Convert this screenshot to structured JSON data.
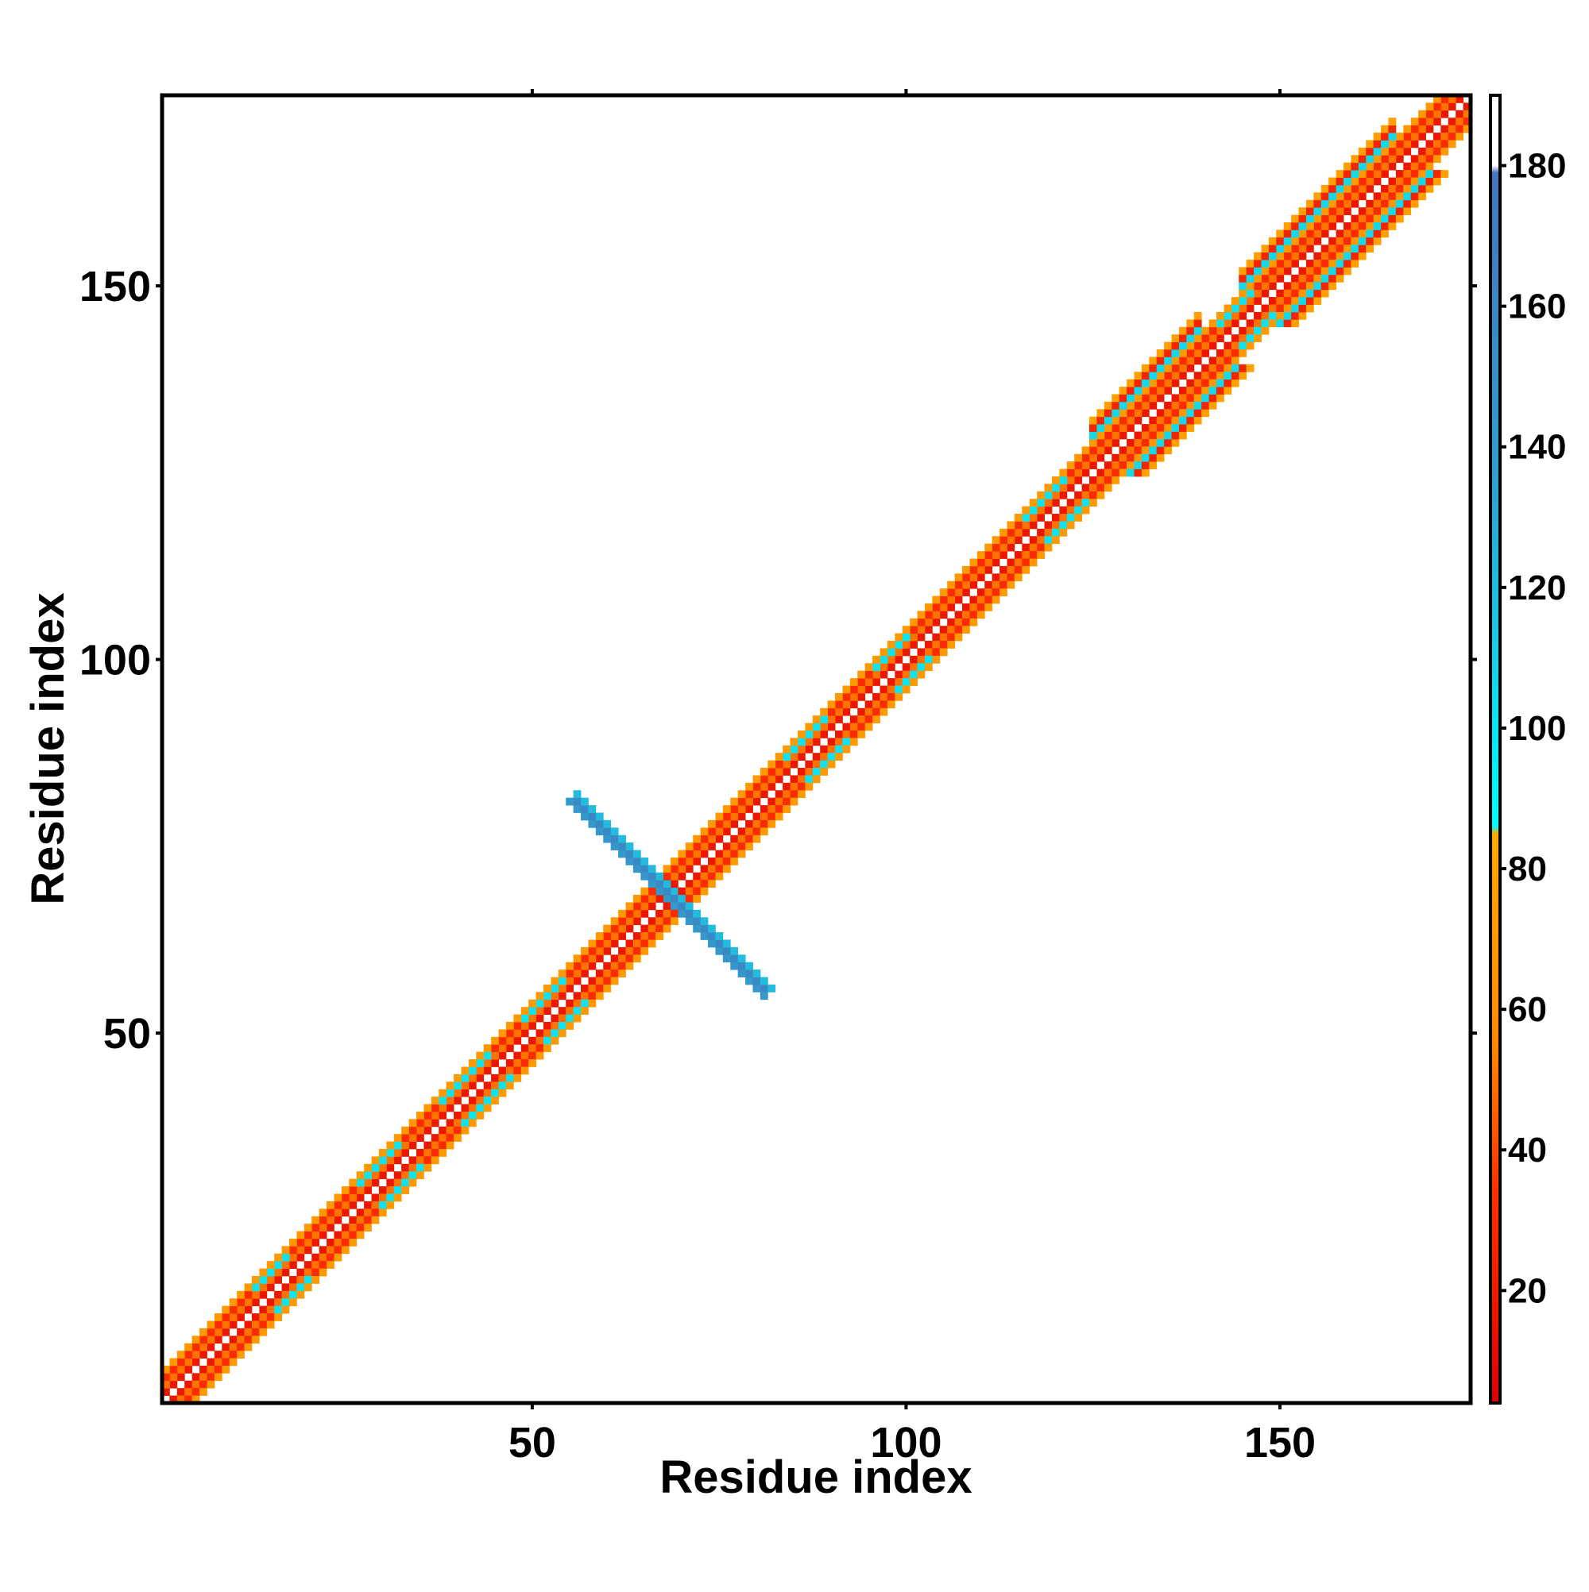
{
  "chart_data": {
    "type": "heatmap",
    "title": "",
    "xlabel": "Residue index",
    "ylabel": "Residue index",
    "xlim": [
      1,
      175
    ],
    "ylim": [
      1,
      175
    ],
    "xticks": [
      50,
      100,
      150
    ],
    "yticks": [
      50,
      100,
      150
    ],
    "grid": false,
    "symmetric": true,
    "diagonal_value": 190,
    "colorbar": {
      "min": 4,
      "max": 190,
      "ticks": [
        20,
        40,
        60,
        80,
        100,
        120,
        140,
        160,
        180
      ],
      "stops": [
        {
          "value": 4,
          "color": "#dd0000"
        },
        {
          "value": 35,
          "color": "#ff3300"
        },
        {
          "value": 55,
          "color": "#ff8800"
        },
        {
          "value": 85,
          "color": "#ffaa00"
        },
        {
          "value": 86,
          "color": "#00ffff"
        },
        {
          "value": 120,
          "color": "#22bbdd"
        },
        {
          "value": 140,
          "color": "#3399cc"
        },
        {
          "value": 179,
          "color": "#4477bb"
        },
        {
          "value": 180,
          "color": "#ffffff"
        },
        {
          "value": 190,
          "color": "#ffffff"
        }
      ]
    },
    "bands": [
      {
        "offset": 1,
        "value": 18,
        "name": "d1"
      },
      {
        "offset": 2,
        "value": 50,
        "name": "d2"
      },
      {
        "offset": 3,
        "value": 30,
        "name": "d3"
      },
      {
        "offset": 4,
        "value": 70,
        "name": "d4"
      }
    ],
    "band_segments": [
      {
        "from": 13,
        "to": 17,
        "offset": 3,
        "value": 100
      },
      {
        "from": 27,
        "to": 32,
        "offset": 3,
        "value": 100
      },
      {
        "from": 38,
        "to": 44,
        "offset": 3,
        "value": 100
      },
      {
        "from": 49,
        "to": 54,
        "offset": 3,
        "value": 100
      },
      {
        "from": 84,
        "to": 89,
        "offset": 3,
        "value": 100
      },
      {
        "from": 96,
        "to": 100,
        "offset": 3,
        "value": 100
      },
      {
        "from": 116,
        "to": 121,
        "offset": 3,
        "value": 100
      },
      {
        "from": 142,
        "to": 146,
        "offset": 3,
        "value": 100
      }
    ],
    "strand_pairs": [
      {
        "from": 125,
        "to": 139,
        "offsets": [
          5,
          6,
          7
        ],
        "values": [
          105,
          25,
          75
        ]
      },
      {
        "from": 145,
        "to": 165,
        "offsets": [
          5,
          6,
          7
        ],
        "values": [
          105,
          25,
          75
        ]
      }
    ],
    "cross_contacts": [
      {
        "center": 68.5,
        "start": 56,
        "end": 81,
        "values": [
          140,
          160,
          120
        ]
      }
    ]
  }
}
